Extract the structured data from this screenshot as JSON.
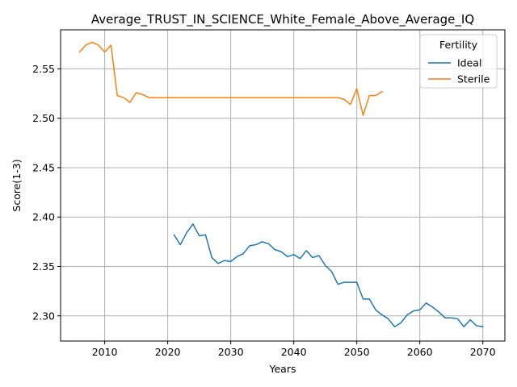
{
  "chart_data": {
    "type": "line",
    "title": "Average_TRUST_IN_SCIENCE_White_Female_Above_Average_IQ",
    "xlabel": "Years",
    "ylabel": "Score(1-3)",
    "xlim": [
      2003,
      2073.5
    ],
    "ylim": [
      2.2745,
      2.5895
    ],
    "xticks": [
      2010,
      2020,
      2030,
      2040,
      2050,
      2060,
      2070
    ],
    "xtick_labels": [
      "2010",
      "2020",
      "2030",
      "2040",
      "2050",
      "2060",
      "2070"
    ],
    "yticks": [
      2.3,
      2.35,
      2.4,
      2.45,
      2.5,
      2.55
    ],
    "ytick_labels": [
      "2.30",
      "2.35",
      "2.40",
      "2.45",
      "2.50",
      "2.55"
    ],
    "grid": true,
    "legend": {
      "title": "Fertility",
      "placement": "top-right"
    },
    "series": [
      {
        "name": "Ideal",
        "color": "#1f77b4",
        "x": [
          2021,
          2022,
          2023,
          2024,
          2025,
          2026,
          2027,
          2028,
          2029,
          2030,
          2031,
          2032,
          2033,
          2034,
          2035,
          2036,
          2037,
          2038,
          2039,
          2040,
          2041,
          2042,
          2043,
          2044,
          2045,
          2046,
          2047,
          2048,
          2049,
          2050,
          2051,
          2052,
          2053,
          2054,
          2055,
          2056,
          2057,
          2058,
          2059,
          2060,
          2061,
          2062,
          2063,
          2064,
          2065,
          2066,
          2067,
          2068,
          2069,
          2070
        ],
        "y": [
          2.382,
          2.372,
          2.384,
          2.393,
          2.381,
          2.382,
          2.359,
          2.353,
          2.356,
          2.355,
          2.36,
          2.363,
          2.371,
          2.372,
          2.375,
          2.373,
          2.367,
          2.365,
          2.36,
          2.362,
          2.358,
          2.366,
          2.359,
          2.361,
          2.351,
          2.345,
          2.332,
          2.334,
          2.334,
          2.334,
          2.317,
          2.317,
          2.306,
          2.301,
          2.297,
          2.289,
          2.293,
          2.301,
          2.305,
          2.306,
          2.313,
          2.309,
          2.304,
          2.298,
          2.298,
          2.297,
          2.289,
          2.296,
          2.29,
          2.289
        ]
      },
      {
        "name": "Sterile",
        "color": "#ff7f0e",
        "x": [
          2006,
          2007,
          2008,
          2009,
          2010,
          2011,
          2012,
          2013,
          2014,
          2015,
          2016,
          2017,
          2018,
          2019,
          2020,
          2021,
          2022,
          2023,
          2024,
          2025,
          2026,
          2027,
          2028,
          2029,
          2030,
          2031,
          2032,
          2033,
          2034,
          2035,
          2036,
          2037,
          2038,
          2039,
          2040,
          2041,
          2042,
          2043,
          2044,
          2045,
          2046,
          2047,
          2048,
          2049,
          2050,
          2051,
          2052,
          2053,
          2054
        ],
        "y": [
          2.567,
          2.574,
          2.577,
          2.574,
          2.567,
          2.574,
          2.523,
          2.521,
          2.516,
          2.526,
          2.524,
          2.521,
          2.521,
          2.521,
          2.521,
          2.521,
          2.521,
          2.521,
          2.521,
          2.521,
          2.521,
          2.521,
          2.521,
          2.521,
          2.521,
          2.521,
          2.521,
          2.521,
          2.521,
          2.521,
          2.521,
          2.521,
          2.521,
          2.521,
          2.521,
          2.521,
          2.521,
          2.521,
          2.521,
          2.521,
          2.521,
          2.521,
          2.519,
          2.514,
          2.53,
          2.503,
          2.523,
          2.523,
          2.527
        ]
      }
    ]
  }
}
